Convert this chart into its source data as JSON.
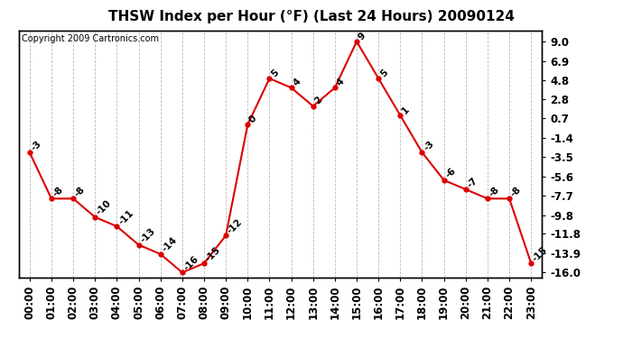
{
  "title": "THSW Index per Hour (°F) (Last 24 Hours) 20090124",
  "copyright": "Copyright 2009 Cartronics.com",
  "hours": [
    "00:00",
    "01:00",
    "02:00",
    "03:00",
    "04:00",
    "05:00",
    "06:00",
    "07:00",
    "08:00",
    "09:00",
    "10:00",
    "11:00",
    "12:00",
    "13:00",
    "14:00",
    "15:00",
    "16:00",
    "17:00",
    "18:00",
    "19:00",
    "20:00",
    "21:00",
    "22:00",
    "23:00"
  ],
  "values": [
    -3,
    -8,
    -8,
    -10,
    -11,
    -13,
    -14,
    -16,
    -15,
    -12,
    0,
    5,
    4,
    2,
    4,
    9,
    5,
    1,
    -3,
    -6,
    -7,
    -8,
    -8,
    -15
  ],
  "yticks": [
    9.0,
    6.9,
    4.8,
    2.8,
    0.7,
    -1.4,
    -3.5,
    -5.6,
    -7.7,
    -9.8,
    -11.8,
    -13.9,
    -16.0
  ],
  "ylim": [
    -16.5,
    10.2
  ],
  "line_color": "#dd0000",
  "marker_color": "#dd0000",
  "bg_color": "#ffffff",
  "grid_color": "#bbbbbb",
  "title_fontsize": 11,
  "label_fontsize": 7.5,
  "copyright_fontsize": 7,
  "tick_fontsize": 8.5
}
